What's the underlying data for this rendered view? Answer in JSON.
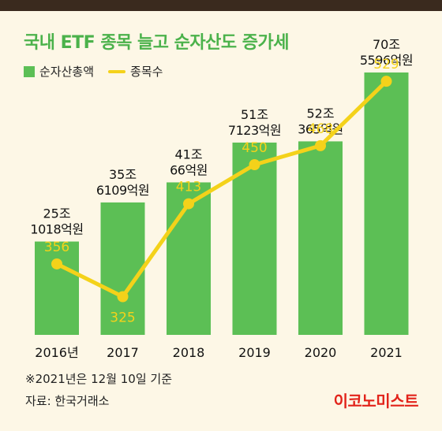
{
  "header": {
    "title": "국내 ETF 종목 늘고 순자산도 증가세"
  },
  "legend": {
    "bar_label": "순자산총액",
    "line_label": "종목수"
  },
  "footer": {
    "note": "※2021년은 12월 10일 기준",
    "source": "자료: 한국거래소",
    "brand": "이코노미스트"
  },
  "colors": {
    "bar": "#5cbf55",
    "line": "#f4d21a",
    "title": "#4bb24b",
    "brand": "#e2231a",
    "background": "#fdf7e6"
  },
  "chart_data": {
    "type": "bar",
    "title": "국내 ETF 종목 늘고 순자산도 증가세",
    "categories": [
      "2016년",
      "2017",
      "2018",
      "2019",
      "2020",
      "2021"
    ],
    "series": [
      {
        "name": "순자산총액",
        "type": "bar",
        "values_eok": [
          251018,
          356109,
          410066,
          517123,
          520365,
          705596
        ],
        "labels_line1": [
          "25조",
          "35조",
          "41조",
          "51조",
          "52조",
          "70조"
        ],
        "labels_line2": [
          "1018억원",
          "6109억원",
          "66억원",
          "7123억원",
          "365억원",
          "5596억원"
        ]
      },
      {
        "name": "종목수",
        "type": "line",
        "values": [
          356,
          325,
          413,
          450,
          468,
          529
        ]
      }
    ],
    "grid": false,
    "legend_position": "top-left"
  }
}
